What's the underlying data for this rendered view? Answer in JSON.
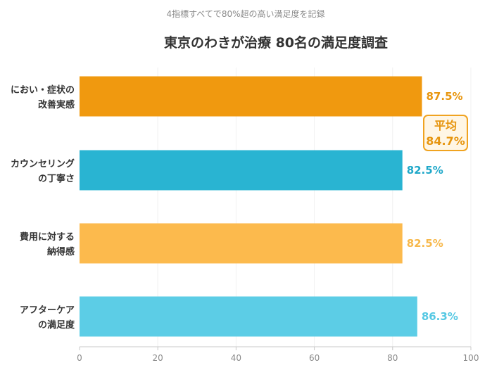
{
  "chart_data": {
    "type": "bar",
    "orientation": "horizontal",
    "subtitle": "4指標すべてで80%超の高い満足度を記録",
    "title": "東京のわきが治療 80名の満足度調査",
    "categories": [
      [
        "におい・症状の",
        "改善実感"
      ],
      [
        "カウンセリング",
        "の丁寧さ"
      ],
      [
        "費用に対する",
        "納得感"
      ],
      [
        "アフターケア",
        "の満足度"
      ]
    ],
    "values": [
      87.5,
      82.5,
      82.5,
      86.3
    ],
    "value_labels": [
      "87.5%",
      "82.5%",
      "82.5%",
      "86.3%"
    ],
    "bar_colors": [
      "#f0990f",
      "#29b4d2",
      "#fcba4d",
      "#5ccde6"
    ],
    "label_colors": [
      "#e8960f",
      "#1fa8c9",
      "#f7b84b",
      "#55c8e3"
    ],
    "xlim": [
      0,
      100
    ],
    "x_ticks": [
      0,
      20,
      40,
      60,
      80,
      100
    ],
    "grid": true,
    "annotation": {
      "label": "平均",
      "value_text": "84.7%",
      "value": 84.7,
      "border_color": "#f0a320",
      "background": "#fff6e5"
    }
  }
}
